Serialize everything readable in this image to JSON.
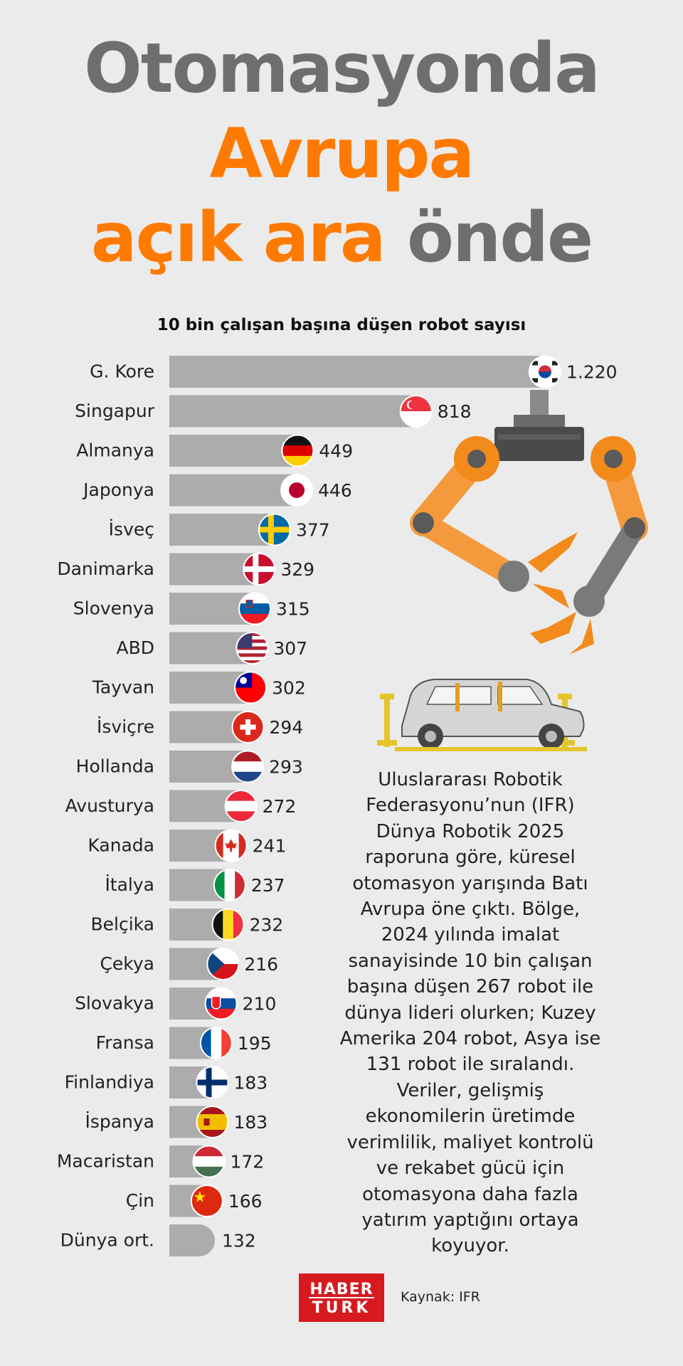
{
  "headline": {
    "line1": "Otomasyonda",
    "line2": "Avrupa",
    "line3_orange": "açık ara",
    "line3_gray": "önde"
  },
  "colors": {
    "orange": "#ff7a00",
    "gray_text": "#6e6e6e",
    "bar": "#acacac",
    "background": "#ebebeb",
    "brand_red": "#d71920"
  },
  "chart_data": {
    "type": "bar",
    "orientation": "horizontal",
    "title": "10 bin çalışan başına düşen robot sayısı",
    "categories": [
      "G. Kore",
      "Singapur",
      "Almanya",
      "Japonya",
      "İsveç",
      "Danimarka",
      "Slovenya",
      "ABD",
      "Tayvan",
      "İsviçre",
      "Hollanda",
      "Avusturya",
      "Kanada",
      "İtalya",
      "Belçika",
      "Çekya",
      "Slovakya",
      "Fransa",
      "Finlandiya",
      "İspanya",
      "Macaristan",
      "Çin",
      "Dünya ort."
    ],
    "values": [
      1220,
      818,
      449,
      446,
      377,
      329,
      315,
      307,
      302,
      294,
      293,
      272,
      241,
      237,
      232,
      216,
      210,
      195,
      183,
      183,
      172,
      166,
      132
    ],
    "value_labels": [
      "1.220",
      "818",
      "449",
      "446",
      "377",
      "329",
      "315",
      "307",
      "302",
      "294",
      "293",
      "272",
      "241",
      "237",
      "232",
      "216",
      "210",
      "195",
      "183",
      "183",
      "172",
      "166",
      "132"
    ],
    "flags": [
      "south-korea",
      "singapore",
      "germany",
      "japan",
      "sweden",
      "denmark",
      "slovenia",
      "usa",
      "taiwan",
      "switzerland",
      "netherlands",
      "austria",
      "canada",
      "italy",
      "belgium",
      "czechia",
      "slovakia",
      "france",
      "finland",
      "spain",
      "hungary",
      "china",
      ""
    ],
    "xlim": [
      0,
      1220
    ]
  },
  "description": "Uluslararası Robotik Federasyonu’nun (IFR) Dünya Robotik 2025 raporuna göre, küresel otomasyon yarışında Batı Avrupa öne çıktı. Bölge, 2024 yılında imalat sanayisinde 10 bin çalışan başına düşen 267 robot ile dünya lideri olurken; Kuzey Amerika 204 robot, Asya ise 131 robot ile sıralandı. Veriler, gelişmiş ekonomilerin üretimde verimlilik, maliyet kontrolü ve rekabet gücü için otomasyona daha fazla yatırım yaptığını ortaya koyuyor.",
  "logo": {
    "line1": "HABER",
    "line2": "TURK"
  },
  "source": "Kaynak: IFR"
}
